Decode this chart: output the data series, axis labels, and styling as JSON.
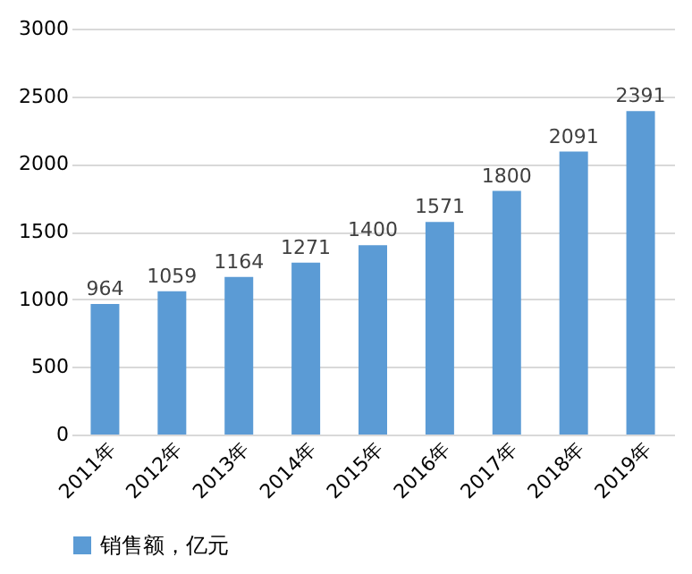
{
  "chart_data": {
    "type": "bar",
    "categories": [
      "2011年",
      "2012年",
      "2013年",
      "2014年",
      "2015年",
      "2016年",
      "2017年",
      "2018年",
      "2019年"
    ],
    "series": [
      {
        "name": "销售额，亿元",
        "color": "#5b9bd5",
        "values": [
          964,
          1059,
          1164,
          1271,
          1400,
          1571,
          1800,
          2091,
          2391
        ]
      }
    ],
    "ylim": [
      0,
      3000
    ],
    "yticks": [
      0,
      500,
      1000,
      1500,
      2000,
      2500,
      3000
    ],
    "grid": "y",
    "legend": "bottom",
    "data_labels": true
  }
}
